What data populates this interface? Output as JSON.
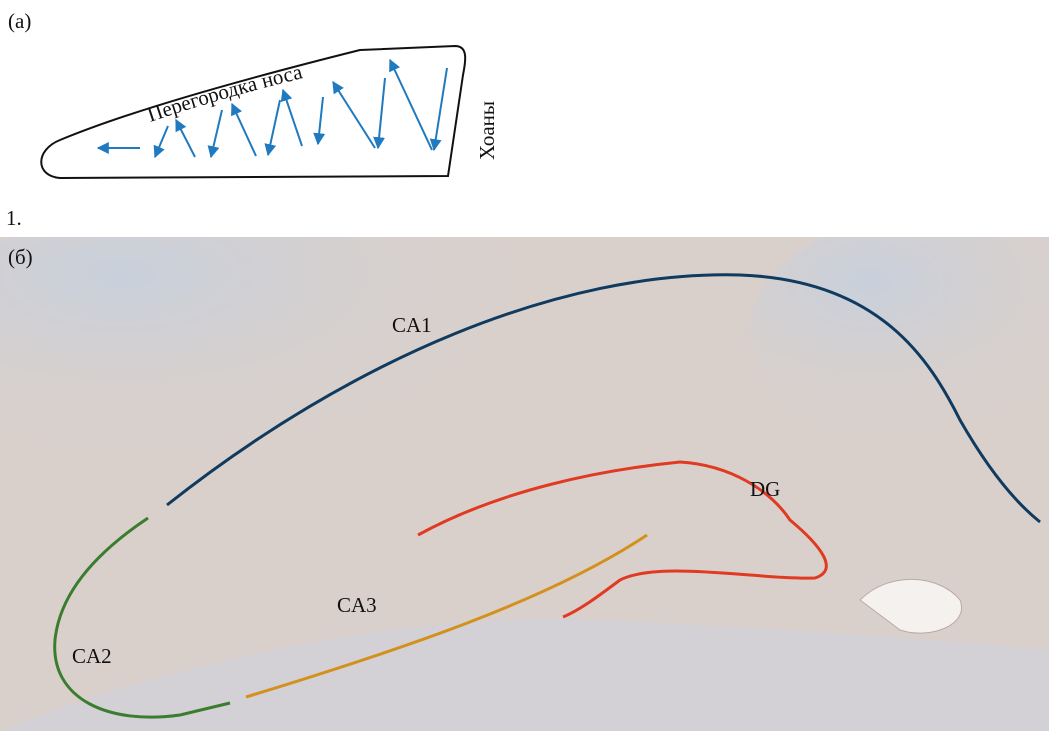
{
  "panel_a": {
    "label": "(а)",
    "septum_label": "Перегородка носа",
    "choanae_label": "Хоаны"
  },
  "figure_number": "1.",
  "panel_b": {
    "label": "(б)",
    "regions": [
      "CA1",
      "DG",
      "CA3",
      "CA2"
    ]
  }
}
